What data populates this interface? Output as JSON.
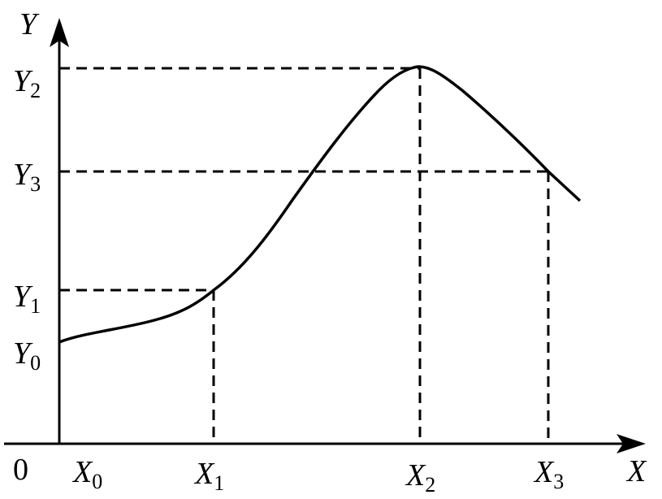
{
  "axes": {
    "y": "Y",
    "x": "X",
    "origin": "0"
  },
  "y_labels": [
    {
      "main": "Y",
      "sub": "0"
    },
    {
      "main": "Y",
      "sub": "1"
    },
    {
      "main": "Y",
      "sub": "2"
    },
    {
      "main": "Y",
      "sub": "3"
    }
  ],
  "x_labels": [
    {
      "main": "X",
      "sub": "0"
    },
    {
      "main": "X",
      "sub": "1"
    },
    {
      "main": "X",
      "sub": "2"
    },
    {
      "main": "X",
      "sub": "3"
    }
  ]
}
